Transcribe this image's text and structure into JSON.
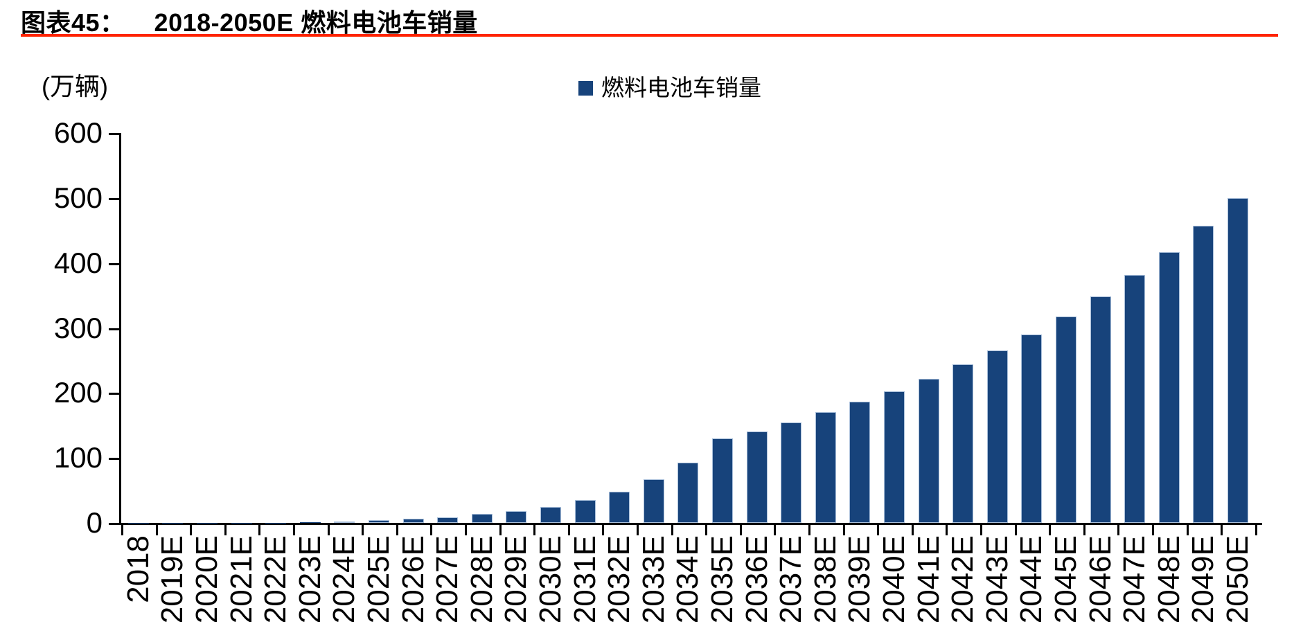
{
  "header": {
    "figure_label": "图表45：",
    "title": "2018-2050E 燃料电池车销量"
  },
  "chart": {
    "unit_label": "(万辆)",
    "legend_label": "燃料电池车销量"
  },
  "colors": {
    "bar": "#17437b",
    "bar_border": "#a9bfda",
    "accent_line": "#ff2400",
    "axis": "#000000"
  },
  "chart_data": {
    "type": "bar",
    "title": "2018-2050E 燃料电池车销量",
    "ylabel": "(万辆)",
    "xlabel": "",
    "ylim": [
      0,
      600
    ],
    "yticks": [
      0,
      100,
      200,
      300,
      400,
      500,
      600
    ],
    "grid": false,
    "legend_position": "top-center",
    "legend": [
      "燃料电池车销量"
    ],
    "categories": [
      "2018",
      "2019E",
      "2020E",
      "2021E",
      "2022E",
      "2023E",
      "2024E",
      "2025E",
      "2026E",
      "2027E",
      "2028E",
      "2029E",
      "2030E",
      "2031E",
      "2032E",
      "2033E",
      "2034E",
      "2035E",
      "2036E",
      "2037E",
      "2038E",
      "2039E",
      "2040E",
      "2041E",
      "2042E",
      "2043E",
      "2044E",
      "2045E",
      "2046E",
      "2047E",
      "2048E",
      "2049E",
      "2050E"
    ],
    "series": [
      {
        "name": "燃料电池车销量",
        "values": [
          0.1,
          0.1,
          0.2,
          0.3,
          0.5,
          1,
          2.5,
          4,
          6.5,
          9,
          13.5,
          18,
          25,
          35,
          48,
          67,
          93,
          130,
          141,
          155,
          170,
          186,
          203,
          222,
          244,
          265,
          290,
          318,
          348,
          381,
          417,
          457,
          500
        ]
      }
    ]
  }
}
